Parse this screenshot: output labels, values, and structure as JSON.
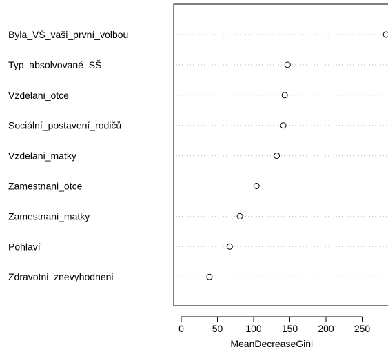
{
  "chart_data": {
    "type": "scatter",
    "title": "",
    "xlabel": "MeanDecreaseGini",
    "ylabel": "",
    "xlim": [
      -10,
      285
    ],
    "xticks": [
      0,
      50,
      100,
      150,
      200,
      250
    ],
    "grid": "dotted-horizontal",
    "marker": "open-circle",
    "categories": [
      "Byla_VŠ_vaši_první_volbou",
      "Typ_absolvované_SŠ",
      "Vzdelani_otce",
      "Sociální_postavení_rodičů",
      "Vzdelani_matky",
      "Zamestnani_otce",
      "Zamestnani_matky",
      "Pohlaví",
      "Zdravotni_znevyhodneni"
    ],
    "values": [
      283,
      147,
      143,
      141,
      132,
      104,
      81,
      67,
      39
    ]
  }
}
